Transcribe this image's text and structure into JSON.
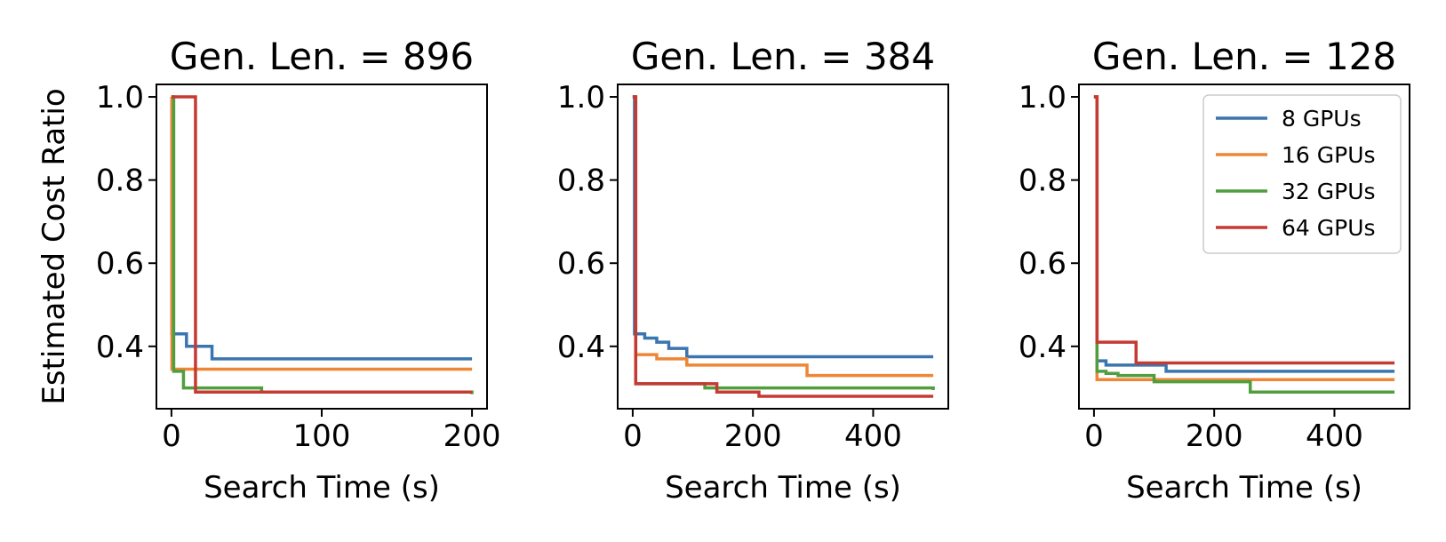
{
  "figure": {
    "ylabel": "Estimated Cost Ratio",
    "xlabel": "Search Time (s)"
  },
  "legend": {
    "placement": "top-right of third panel",
    "entries": [
      "8 GPUs",
      "16 GPUs",
      "32 GPUs",
      "64 GPUs"
    ]
  },
  "colors": {
    "8 GPUs": "#3b75af",
    "16 GPUs": "#ef8636",
    "32 GPUs": "#519e3e",
    "64 GPUs": "#c53a32"
  },
  "chart_data": [
    {
      "type": "line",
      "title": "Gen. Len. = 896",
      "xlabel": "Search Time (s)",
      "ylabel": "Estimated Cost Ratio",
      "xlim": [
        -10,
        210
      ],
      "ylim": [
        0.25,
        1.03
      ],
      "xticks": [
        0,
        100,
        200
      ],
      "xtick_labels": [
        "0",
        "100",
        "200"
      ],
      "yticks": [
        0.4,
        0.6,
        0.8,
        1.0
      ],
      "ytick_labels": [
        "0.4",
        "0.6",
        "0.8",
        "1.0"
      ],
      "step": true,
      "series": [
        {
          "name": "8 GPUs",
          "x": [
            0,
            0.3,
            3,
            10,
            27,
            200
          ],
          "y": [
            1.0,
            0.43,
            0.43,
            0.4,
            0.37,
            0.37
          ]
        },
        {
          "name": "16 GPUs",
          "x": [
            0,
            0.3,
            200
          ],
          "y": [
            1.0,
            0.345,
            0.345
          ]
        },
        {
          "name": "32 GPUs",
          "x": [
            0,
            1.5,
            8,
            60,
            200
          ],
          "y": [
            1.0,
            0.34,
            0.3,
            0.29,
            0.285
          ]
        },
        {
          "name": "64 GPUs",
          "x": [
            0,
            10,
            16,
            200
          ],
          "y": [
            1.0,
            1.0,
            0.29,
            0.29
          ]
        }
      ]
    },
    {
      "type": "line",
      "title": "Gen. Len. = 384",
      "xlabel": "Search Time (s)",
      "ylabel": "",
      "xlim": [
        -25,
        525
      ],
      "ylim": [
        0.25,
        1.03
      ],
      "xticks": [
        0,
        200,
        400
      ],
      "xtick_labels": [
        "0",
        "200",
        "400"
      ],
      "yticks": [
        0.4,
        0.6,
        0.8,
        1.0
      ],
      "ytick_labels": [
        "0.4",
        "0.6",
        "0.8",
        "1.0"
      ],
      "step": true,
      "series": [
        {
          "name": "8 GPUs",
          "x": [
            0,
            3,
            20,
            40,
            60,
            90,
            500
          ],
          "y": [
            1.0,
            0.43,
            0.42,
            0.41,
            0.395,
            0.375,
            0.375
          ]
        },
        {
          "name": "16 GPUs",
          "x": [
            0,
            5,
            40,
            90,
            290,
            500
          ],
          "y": [
            1.0,
            0.38,
            0.37,
            0.355,
            0.33,
            0.33
          ]
        },
        {
          "name": "32 GPUs",
          "x": [
            0,
            5,
            120,
            500
          ],
          "y": [
            1.0,
            0.31,
            0.3,
            0.295
          ]
        },
        {
          "name": "64 GPUs",
          "x": [
            0,
            5,
            140,
            210,
            500
          ],
          "y": [
            1.0,
            0.31,
            0.29,
            0.28,
            0.28
          ]
        }
      ]
    },
    {
      "type": "line",
      "title": "Gen. Len. = 128",
      "xlabel": "Search Time (s)",
      "ylabel": "",
      "xlim": [
        -25,
        525
      ],
      "ylim": [
        0.25,
        1.03
      ],
      "xticks": [
        0,
        200,
        400
      ],
      "xtick_labels": [
        "0",
        "200",
        "400"
      ],
      "yticks": [
        0.4,
        0.6,
        0.8,
        1.0
      ],
      "ytick_labels": [
        "0.4",
        "0.6",
        "0.8",
        "1.0"
      ],
      "step": true,
      "series": [
        {
          "name": "8 GPUs",
          "x": [
            0,
            5,
            20,
            120,
            500
          ],
          "y": [
            1.0,
            0.365,
            0.355,
            0.34,
            0.34
          ]
        },
        {
          "name": "16 GPUs",
          "x": [
            0,
            5,
            500
          ],
          "y": [
            1.0,
            0.32,
            0.32
          ]
        },
        {
          "name": "32 GPUs",
          "x": [
            0,
            5,
            20,
            40,
            100,
            260,
            500
          ],
          "y": [
            1.0,
            0.34,
            0.335,
            0.33,
            0.315,
            0.29,
            0.29
          ]
        },
        {
          "name": "64 GPUs",
          "x": [
            0,
            5,
            70,
            500
          ],
          "y": [
            1.0,
            0.41,
            0.36,
            0.36
          ]
        }
      ]
    }
  ]
}
